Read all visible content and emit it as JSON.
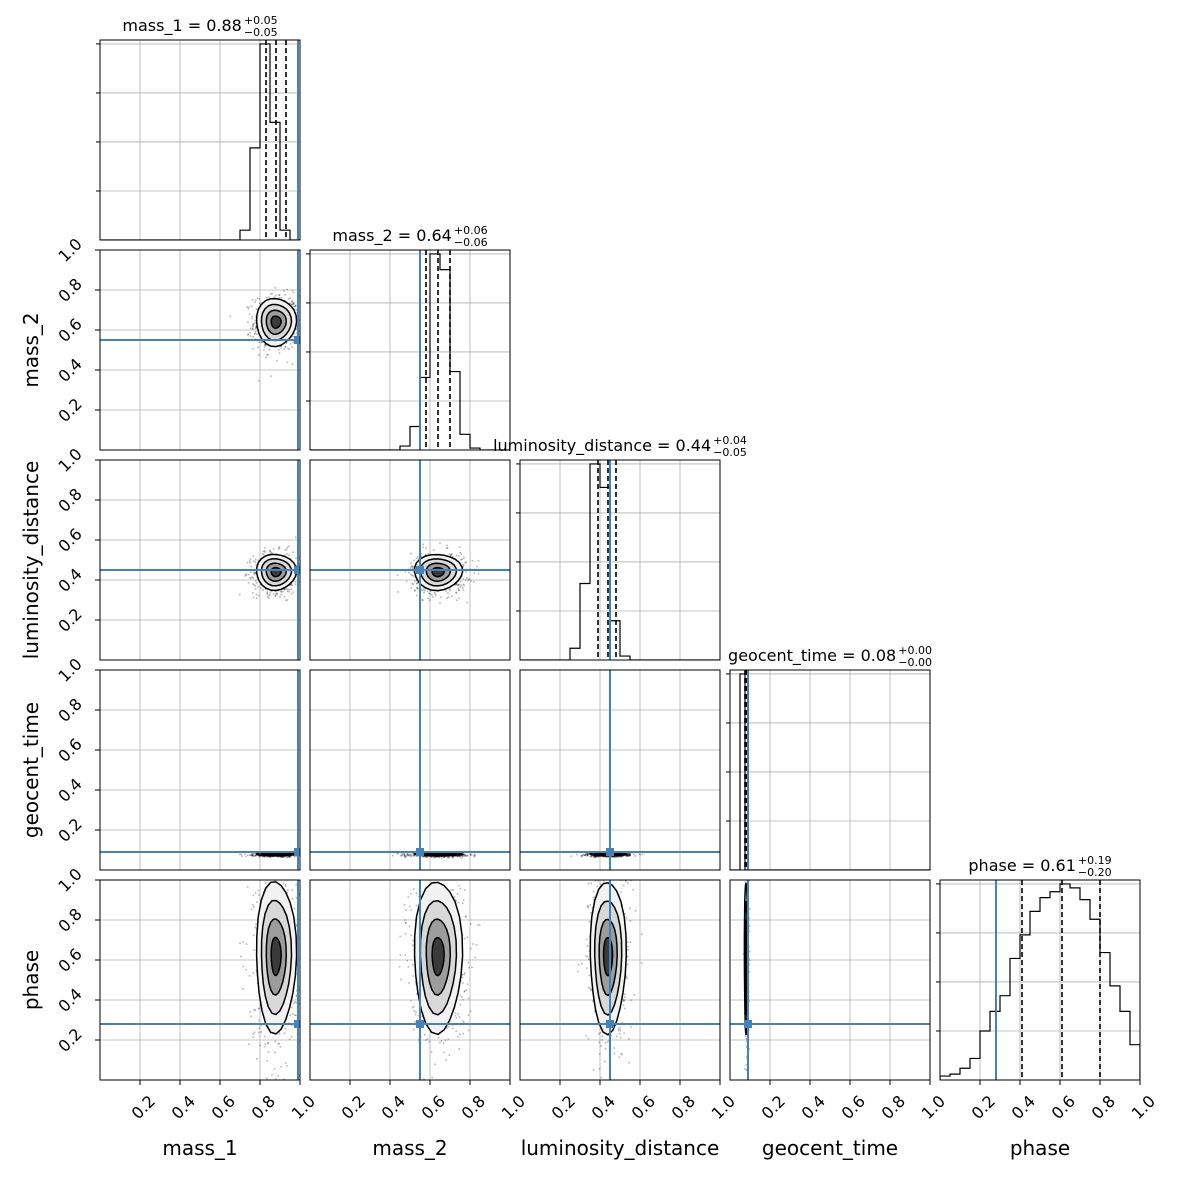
{
  "chart_data": {
    "type": "corner",
    "parameters": [
      "mass_1",
      "mass_2",
      "luminosity_distance",
      "geocent_time",
      "phase"
    ],
    "range": [
      0,
      1
    ],
    "ticks": [
      0.2,
      0.4,
      0.6,
      0.8,
      1.0
    ],
    "tick_labels": [
      "0.2",
      "0.4",
      "0.6",
      "0.8",
      "1.0"
    ],
    "grid": true,
    "truth_color": "#4682b4",
    "line_color": "#000000",
    "truths": [
      0.99,
      0.55,
      0.45,
      0.09,
      0.28
    ],
    "titles": [
      {
        "param": "mass_1",
        "text": "mass_1 = 0.88",
        "plus": "+0.05",
        "minus": "−0.05"
      },
      {
        "param": "mass_2",
        "text": "mass_2 = 0.64",
        "plus": "+0.06",
        "minus": "−0.06"
      },
      {
        "param": "luminosity_distance",
        "text": "luminosity_distance = 0.44",
        "plus": "+0.04",
        "minus": "−0.05"
      },
      {
        "param": "geocent_time",
        "text": "geocent_time = 0.08",
        "plus": "+0.00",
        "minus": "−0.00"
      },
      {
        "param": "phase",
        "text": "phase = 0.61",
        "plus": "+0.19",
        "minus": "−0.20"
      }
    ],
    "quantiles": [
      [
        0.83,
        0.88,
        0.93
      ],
      [
        0.58,
        0.64,
        0.7
      ],
      [
        0.39,
        0.44,
        0.48
      ],
      [
        0.075,
        0.08,
        0.085
      ],
      [
        0.41,
        0.61,
        0.8
      ]
    ],
    "marginals": [
      {
        "bin_edges": [
          0.7,
          0.75,
          0.8,
          0.85,
          0.9,
          0.95,
          1.0
        ],
        "counts": [
          0.05,
          0.47,
          1.0,
          0.6,
          0.05,
          0.0
        ]
      },
      {
        "bin_edges": [
          0.45,
          0.5,
          0.55,
          0.6,
          0.65,
          0.7,
          0.75,
          0.8,
          0.85
        ],
        "counts": [
          0.02,
          0.12,
          0.37,
          1.0,
          0.92,
          0.4,
          0.08,
          0.01
        ]
      },
      {
        "bin_edges": [
          0.25,
          0.3,
          0.35,
          0.4,
          0.45,
          0.5,
          0.55,
          0.6
        ],
        "counts": [
          0.06,
          0.39,
          1.0,
          0.88,
          0.2,
          0.02,
          0.0
        ]
      },
      {
        "bin_edges": [
          0.05,
          0.075,
          0.1
        ],
        "counts": [
          1.0,
          0.0
        ]
      },
      {
        "bin_edges": [
          0.0,
          0.05,
          0.1,
          0.15,
          0.2,
          0.25,
          0.3,
          0.35,
          0.4,
          0.45,
          0.5,
          0.55,
          0.6,
          0.65,
          0.7,
          0.75,
          0.8,
          0.85,
          0.9,
          0.95,
          1.0
        ],
        "counts": [
          0.02,
          0.03,
          0.06,
          0.11,
          0.25,
          0.35,
          0.43,
          0.62,
          0.74,
          0.86,
          0.93,
          0.96,
          1.0,
          0.98,
          0.92,
          0.82,
          0.65,
          0.48,
          0.35,
          0.18
        ]
      }
    ],
    "joint": [
      {
        "x": "mass_1",
        "y": "mass_2",
        "mean": [
          0.88,
          0.64
        ],
        "sd": [
          0.05,
          0.06
        ]
      },
      {
        "x": "mass_1",
        "y": "luminosity_distance",
        "mean": [
          0.88,
          0.44
        ],
        "sd": [
          0.05,
          0.045
        ]
      },
      {
        "x": "mass_2",
        "y": "luminosity_distance",
        "mean": [
          0.64,
          0.44
        ],
        "sd": [
          0.06,
          0.045
        ]
      },
      {
        "x": "mass_1",
        "y": "geocent_time",
        "mean": [
          0.88,
          0.08
        ],
        "sd": [
          0.05,
          0.004
        ]
      },
      {
        "x": "mass_2",
        "y": "geocent_time",
        "mean": [
          0.64,
          0.08
        ],
        "sd": [
          0.06,
          0.004
        ]
      },
      {
        "x": "luminosity_distance",
        "y": "geocent_time",
        "mean": [
          0.44,
          0.08
        ],
        "sd": [
          0.045,
          0.004
        ]
      },
      {
        "x": "mass_1",
        "y": "phase",
        "mean": [
          0.88,
          0.62
        ],
        "sd": [
          0.05,
          0.19
        ]
      },
      {
        "x": "mass_2",
        "y": "phase",
        "mean": [
          0.64,
          0.62
        ],
        "sd": [
          0.06,
          0.19
        ]
      },
      {
        "x": "luminosity_distance",
        "y": "phase",
        "mean": [
          0.44,
          0.62
        ],
        "sd": [
          0.045,
          0.19
        ]
      },
      {
        "x": "geocent_time",
        "y": "phase",
        "mean": [
          0.08,
          0.62
        ],
        "sd": [
          0.004,
          0.19
        ]
      }
    ]
  }
}
